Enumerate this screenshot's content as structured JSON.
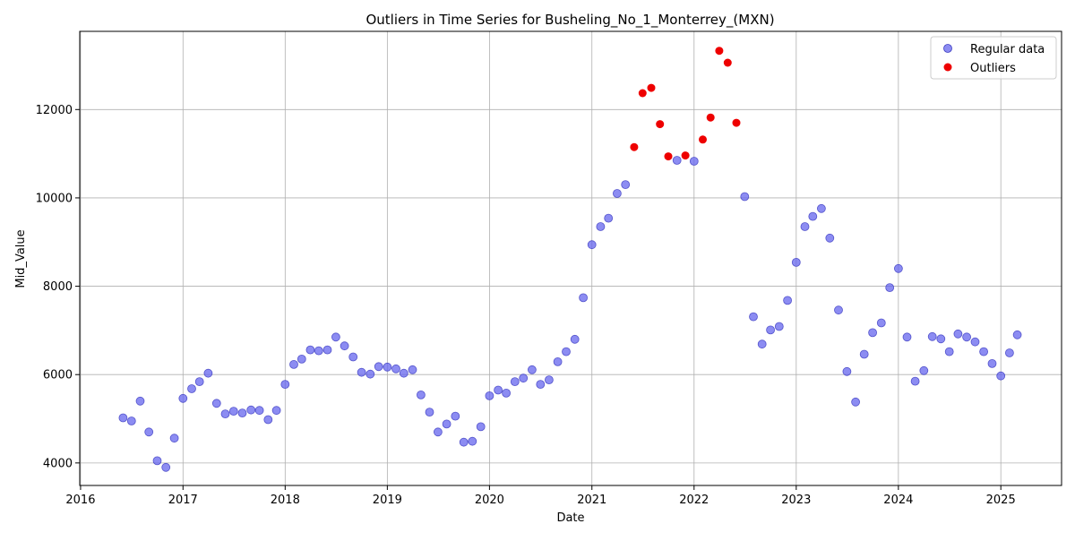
{
  "chart_data": {
    "type": "scatter",
    "title": "Outliers in Time Series for Busheling_No_1_Monterrey_(MXN)",
    "xlabel": "Date",
    "ylabel": "Mid_Value",
    "xlim": [
      "2015-12-29",
      "2025-08-06"
    ],
    "ylim": [
      3490,
      13770
    ],
    "x_ticks": [
      "2016",
      "2017",
      "2018",
      "2019",
      "2020",
      "2021",
      "2022",
      "2023",
      "2024",
      "2025"
    ],
    "y_ticks": [
      4000,
      6000,
      8000,
      10000,
      12000
    ],
    "grid": true,
    "legend_position": "top-right",
    "series": [
      {
        "name": "Regular data",
        "color": "#6666ee",
        "points": [
          [
            "2016-06-01",
            5020
          ],
          [
            "2016-07-01",
            4950
          ],
          [
            "2016-08-01",
            5400
          ],
          [
            "2016-09-01",
            4700
          ],
          [
            "2016-10-01",
            4050
          ],
          [
            "2016-11-01",
            3900
          ],
          [
            "2016-12-01",
            4560
          ],
          [
            "2017-01-01",
            5460
          ],
          [
            "2017-02-01",
            5680
          ],
          [
            "2017-03-01",
            5840
          ],
          [
            "2017-04-01",
            6030
          ],
          [
            "2017-05-01",
            5350
          ],
          [
            "2017-06-01",
            5110
          ],
          [
            "2017-07-01",
            5170
          ],
          [
            "2017-08-01",
            5130
          ],
          [
            "2017-09-01",
            5200
          ],
          [
            "2017-10-01",
            5190
          ],
          [
            "2017-11-01",
            4980
          ],
          [
            "2017-12-01",
            5190
          ],
          [
            "2018-01-01",
            5780
          ],
          [
            "2018-02-01",
            6230
          ],
          [
            "2018-03-01",
            6350
          ],
          [
            "2018-04-01",
            6560
          ],
          [
            "2018-05-01",
            6540
          ],
          [
            "2018-06-01",
            6560
          ],
          [
            "2018-07-01",
            6850
          ],
          [
            "2018-08-01",
            6650
          ],
          [
            "2018-09-01",
            6400
          ],
          [
            "2018-10-01",
            6050
          ],
          [
            "2018-11-01",
            6010
          ],
          [
            "2018-12-01",
            6180
          ],
          [
            "2019-01-01",
            6170
          ],
          [
            "2019-02-01",
            6130
          ],
          [
            "2019-03-01",
            6030
          ],
          [
            "2019-04-01",
            6110
          ],
          [
            "2019-05-01",
            5540
          ],
          [
            "2019-06-01",
            5150
          ],
          [
            "2019-07-01",
            4700
          ],
          [
            "2019-08-01",
            4880
          ],
          [
            "2019-09-01",
            5060
          ],
          [
            "2019-10-01",
            4470
          ],
          [
            "2019-11-01",
            4490
          ],
          [
            "2019-12-01",
            4820
          ],
          [
            "2020-01-01",
            5520
          ],
          [
            "2020-02-01",
            5650
          ],
          [
            "2020-03-01",
            5580
          ],
          [
            "2020-04-01",
            5840
          ],
          [
            "2020-05-01",
            5920
          ],
          [
            "2020-06-01",
            6110
          ],
          [
            "2020-07-01",
            5780
          ],
          [
            "2020-08-01",
            5880
          ],
          [
            "2020-09-01",
            6290
          ],
          [
            "2020-10-01",
            6520
          ],
          [
            "2020-11-01",
            6800
          ],
          [
            "2020-12-01",
            7740
          ],
          [
            "2021-01-01",
            8940
          ],
          [
            "2021-02-01",
            9350
          ],
          [
            "2021-03-01",
            9540
          ],
          [
            "2021-04-01",
            10100
          ],
          [
            "2021-05-01",
            10300
          ],
          [
            "2021-11-01",
            10850
          ],
          [
            "2022-01-01",
            10830
          ],
          [
            "2022-07-01",
            10030
          ],
          [
            "2022-08-01",
            7310
          ],
          [
            "2022-09-01",
            6690
          ],
          [
            "2022-10-01",
            7010
          ],
          [
            "2022-11-01",
            7090
          ],
          [
            "2022-12-01",
            7680
          ],
          [
            "2023-01-01",
            8540
          ],
          [
            "2023-02-01",
            9350
          ],
          [
            "2023-03-01",
            9580
          ],
          [
            "2023-04-01",
            9760
          ],
          [
            "2023-05-01",
            9090
          ],
          [
            "2023-06-01",
            7460
          ],
          [
            "2023-07-01",
            6070
          ],
          [
            "2023-08-01",
            5380
          ],
          [
            "2023-09-01",
            6460
          ],
          [
            "2023-10-01",
            6950
          ],
          [
            "2023-11-01",
            7170
          ],
          [
            "2023-12-01",
            7970
          ],
          [
            "2024-01-01",
            8400
          ],
          [
            "2024-02-01",
            6850
          ],
          [
            "2024-03-01",
            5850
          ],
          [
            "2024-04-01",
            6090
          ],
          [
            "2024-05-01",
            6860
          ],
          [
            "2024-06-01",
            6810
          ],
          [
            "2024-07-01",
            6520
          ],
          [
            "2024-08-01",
            6920
          ],
          [
            "2024-09-01",
            6850
          ],
          [
            "2024-10-01",
            6740
          ],
          [
            "2024-11-01",
            6520
          ],
          [
            "2024-12-01",
            6250
          ],
          [
            "2025-01-01",
            5970
          ],
          [
            "2025-02-01",
            6490
          ],
          [
            "2025-03-01",
            6900
          ]
        ]
      },
      {
        "name": "Outliers",
        "color": "#ee0000",
        "points": [
          [
            "2021-06-01",
            11150
          ],
          [
            "2021-07-01",
            12370
          ],
          [
            "2021-08-01",
            12490
          ],
          [
            "2021-09-01",
            11670
          ],
          [
            "2021-10-01",
            10940
          ],
          [
            "2021-12-01",
            10960
          ],
          [
            "2022-02-01",
            11320
          ],
          [
            "2022-03-01",
            11820
          ],
          [
            "2022-04-01",
            13330
          ],
          [
            "2022-05-01",
            13060
          ],
          [
            "2022-06-01",
            11700
          ]
        ]
      }
    ]
  }
}
